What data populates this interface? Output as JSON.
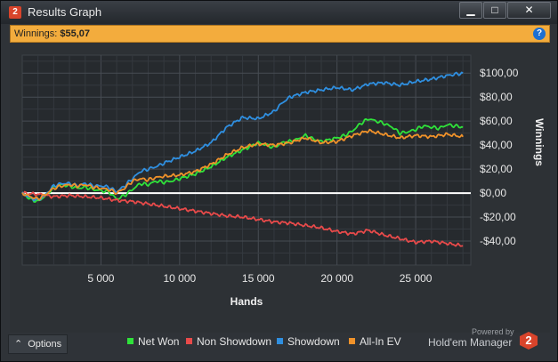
{
  "window": {
    "title": "Results Graph",
    "app_icon": "2",
    "minimize": "▁",
    "maximize": "□",
    "close": "✕"
  },
  "summary": {
    "label": "Winnings:",
    "value": "$55,07",
    "help_icon": "?"
  },
  "chart_data": {
    "type": "line",
    "xlabel": "Hands",
    "ylabel": "Winnings",
    "xlim": [
      0,
      28500
    ],
    "ylim": [
      -60,
      115
    ],
    "x_ticks": [
      5000,
      10000,
      15000,
      20000,
      25000
    ],
    "x_tick_labels": [
      "5 000",
      "10 000",
      "15 000",
      "20 000",
      "25 000"
    ],
    "y_ticks": [
      100,
      80,
      60,
      40,
      20,
      0,
      -20,
      -40
    ],
    "y_tick_labels": [
      "$100,00",
      "$80,00",
      "$60,00",
      "$40,00",
      "$20,00",
      "$0,00",
      "-$20,00",
      "-$40,00"
    ],
    "grid": true,
    "legend_position": "bottom",
    "series": [
      {
        "name": "Net Won",
        "color": "#2fe23a",
        "x": [
          0,
          500,
          1000,
          1500,
          2000,
          2500,
          3000,
          3500,
          4000,
          4500,
          5000,
          5500,
          6000,
          6500,
          7000,
          7500,
          8000,
          8500,
          9000,
          9500,
          10000,
          11000,
          12000,
          13000,
          14000,
          15000,
          15500,
          16000,
          16500,
          17000,
          17500,
          18000,
          18500,
          19000,
          20000,
          20500,
          21000,
          21500,
          22000,
          22500,
          23000,
          23500,
          24000,
          24500,
          25000,
          25500,
          26000,
          26500,
          27000,
          27500,
          28000
        ],
        "y": [
          0,
          -5,
          -7,
          -2,
          5,
          7,
          6,
          4,
          5,
          3,
          2,
          1,
          -5,
          -2,
          3,
          8,
          7,
          10,
          9,
          10,
          12,
          16,
          22,
          30,
          36,
          42,
          40,
          38,
          42,
          43,
          45,
          48,
          45,
          43,
          46,
          48,
          52,
          58,
          62,
          60,
          58,
          55,
          50,
          51,
          53,
          56,
          55,
          54,
          57,
          56,
          55
        ]
      },
      {
        "name": "Non Showdown",
        "color": "#e84a4a",
        "x": [
          0,
          1000,
          2000,
          3000,
          4000,
          5000,
          6000,
          7000,
          8000,
          9000,
          10000,
          11000,
          12000,
          13000,
          14000,
          15000,
          16000,
          17000,
          18000,
          19000,
          20000,
          21000,
          22000,
          23000,
          24000,
          25000,
          26000,
          27000,
          28000
        ],
        "y": [
          0,
          -1,
          -3,
          -2,
          -3,
          -4,
          -6,
          -7,
          -9,
          -11,
          -13,
          -15,
          -17,
          -19,
          -20,
          -22,
          -24,
          -25,
          -27,
          -29,
          -32,
          -34,
          -31,
          -35,
          -38,
          -41,
          -40,
          -42,
          -44
        ]
      },
      {
        "name": "Showdown",
        "color": "#2f8fe0",
        "x": [
          0,
          500,
          1000,
          1500,
          2000,
          2500,
          3000,
          3500,
          4000,
          4500,
          5000,
          5500,
          6000,
          6500,
          7000,
          7500,
          8000,
          8500,
          9000,
          10000,
          11000,
          12000,
          13000,
          14000,
          15000,
          16000,
          16500,
          17000,
          18000,
          19000,
          20000,
          21000,
          22000,
          23000,
          24000,
          25000,
          26000,
          27000,
          27500,
          28000
        ],
        "y": [
          0,
          -4,
          -6,
          -1,
          6,
          8,
          8,
          6,
          8,
          6,
          6,
          5,
          1,
          6,
          12,
          18,
          20,
          22,
          25,
          30,
          35,
          42,
          55,
          63,
          62,
          68,
          75,
          80,
          84,
          86,
          88,
          86,
          91,
          92,
          90,
          93,
          95,
          98,
          99,
          100
        ]
      },
      {
        "name": "All-In EV",
        "color": "#f0922a",
        "x": [
          0,
          500,
          1000,
          1500,
          2000,
          2500,
          3000,
          3500,
          4000,
          4500,
          5000,
          5500,
          6000,
          6500,
          7000,
          7500,
          8000,
          8500,
          9000,
          10000,
          11000,
          12000,
          13000,
          14000,
          15000,
          16000,
          17000,
          18000,
          19000,
          20000,
          21000,
          22000,
          23000,
          24000,
          25000,
          26000,
          27000,
          28000
        ],
        "y": [
          0,
          -3,
          -5,
          -1,
          4,
          6,
          7,
          6,
          7,
          5,
          4,
          3,
          0,
          4,
          10,
          12,
          11,
          13,
          14,
          15,
          18,
          24,
          32,
          38,
          41,
          40,
          42,
          46,
          42,
          43,
          48,
          52,
          49,
          46,
          48,
          47,
          49,
          47
        ]
      }
    ]
  },
  "footer": {
    "options_label": "Options",
    "options_icon": "⌃",
    "powered_by": "Powered by",
    "brand": "Hold'em Manager",
    "brand_logo": "2"
  }
}
